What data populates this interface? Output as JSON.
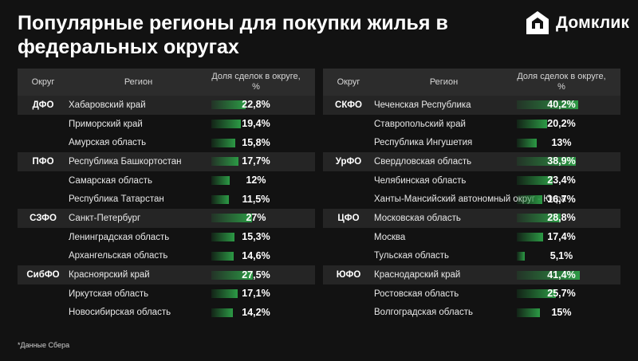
{
  "title": "Популярные регионы для покупки жилья в федеральных округах",
  "logo": {
    "name": "Домклик"
  },
  "headers": {
    "okrug": "Округ",
    "region": "Регион",
    "share": "Доля сделок в округе, %"
  },
  "footnote": "*Данные Сбера",
  "colors": {
    "background": "#121212",
    "bar": "#2c9a45",
    "header": "#2c2c2c"
  },
  "chart_data": {
    "type": "table",
    "title": "Популярные регионы для покупки жилья в федеральных округах",
    "columns": [
      "Округ",
      "Регион",
      "Доля сделок в округе, %"
    ],
    "left": [
      {
        "okrug": "ДФО",
        "rows": [
          {
            "region": "Хабаровский край",
            "value": 22.8,
            "label": "22,8%"
          },
          {
            "region": "Приморский край",
            "value": 19.4,
            "label": "19,4%"
          },
          {
            "region": "Амурская область",
            "value": 15.8,
            "label": "15,8%"
          }
        ]
      },
      {
        "okrug": "ПФО",
        "rows": [
          {
            "region": "Республика Башкортостан",
            "value": 17.7,
            "label": "17,7%"
          },
          {
            "region": "Самарская область",
            "value": 12,
            "label": "12%"
          },
          {
            "region": "Республика Татарстан",
            "value": 11.5,
            "label": "11,5%"
          }
        ]
      },
      {
        "okrug": "СЗФО",
        "rows": [
          {
            "region": "Санкт-Петербург",
            "value": 27,
            "label": "27%"
          },
          {
            "region": "Ленинградская область",
            "value": 15.3,
            "label": "15,3%"
          },
          {
            "region": "Архангельская область",
            "value": 14.6,
            "label": "14,6%"
          }
        ]
      },
      {
        "okrug": "СибФО",
        "rows": [
          {
            "region": "Красноярский край",
            "value": 27.5,
            "label": "27,5%"
          },
          {
            "region": "Иркутская область",
            "value": 17.1,
            "label": "17,1%"
          },
          {
            "region": "Новосибирская область",
            "value": 14.2,
            "label": "14,2%"
          }
        ]
      }
    ],
    "right": [
      {
        "okrug": "СКФО",
        "rows": [
          {
            "region": "Чеченская Республика",
            "value": 40.2,
            "label": "40,2%"
          },
          {
            "region": "Ставропольский край",
            "value": 20.2,
            "label": "20,2%"
          },
          {
            "region": "Республика Ингушетия",
            "value": 13,
            "label": "13%"
          }
        ]
      },
      {
        "okrug": "УрФО",
        "rows": [
          {
            "region": "Свердловская область",
            "value": 38.9,
            "label": "38,9%"
          },
          {
            "region": "Челябинская область",
            "value": 23.4,
            "label": "23,4%"
          },
          {
            "region": "Ханты-Мансийский автономный округ - Югра",
            "value": 16.7,
            "label": "16,7%"
          }
        ]
      },
      {
        "okrug": "ЦФО",
        "rows": [
          {
            "region": "Московская область",
            "value": 28.8,
            "label": "28,8%"
          },
          {
            "region": "Москва",
            "value": 17.4,
            "label": "17,4%"
          },
          {
            "region": "Тульская область",
            "value": 5.1,
            "label": "5,1%"
          }
        ]
      },
      {
        "okrug": "ЮФО",
        "rows": [
          {
            "region": "Краснодарский край",
            "value": 41.4,
            "label": "41,4%"
          },
          {
            "region": "Ростовская область",
            "value": 25.7,
            "label": "25,7%"
          },
          {
            "region": "Волгоградская область",
            "value": 15,
            "label": "15%"
          }
        ]
      }
    ]
  }
}
